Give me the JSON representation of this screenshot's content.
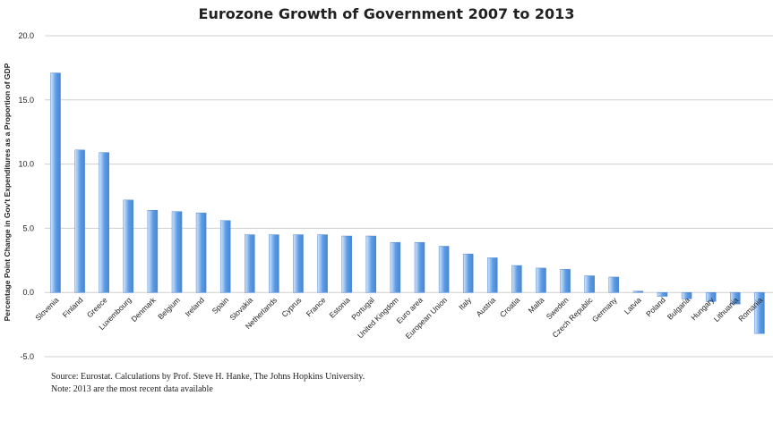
{
  "title": "Eurozone Growth of Government 2007 to 2013",
  "source_text": "Source: Eurostat. Calculations by Prof. Steve H. Hanke, The Johns Hopkins University.",
  "note_text": "Note: 2013 are the most recent data available",
  "colors": {
    "bar_light": "#d7e6fa",
    "bar_dark": "#5b9be6",
    "bar_stroke": "#4a86d0",
    "grid": "#cfcfcf",
    "text": "#222222"
  },
  "chart_data": {
    "type": "bar",
    "title": "Eurozone Growth of Government 2007 to 2013",
    "ylabel": "Percentage Point Change in Gov't Expenditures as a Proportion of GDP",
    "xlabel": "",
    "ylim": [
      -5,
      20
    ],
    "yticks": [
      "20.0",
      "15.0",
      "10.0",
      "5.0",
      "0.0",
      "-5.0"
    ],
    "grid": true,
    "categories": [
      "Slovenia",
      "Finland",
      "Greece",
      "Luxembourg",
      "Denmark",
      "Belgium",
      "Ireland",
      "Spain",
      "Slovakia",
      "Netherlands",
      "Cyprus",
      "France",
      "Estonia",
      "Portugal",
      "United Kingdom",
      "Euro area",
      "European Union",
      "Italy",
      "Austria",
      "Croatia",
      "Malta",
      "Sweden",
      "Czech Republic",
      "Germany",
      "Latvia",
      "Poland",
      "Bulgaria",
      "Hungary",
      "Lithuania",
      "Romania"
    ],
    "values": [
      17.1,
      11.1,
      10.9,
      7.2,
      6.4,
      6.3,
      6.2,
      5.6,
      4.5,
      4.5,
      4.5,
      4.5,
      4.4,
      4.4,
      3.9,
      3.9,
      3.6,
      3.0,
      2.7,
      2.1,
      1.9,
      1.8,
      1.3,
      1.2,
      0.1,
      -0.3,
      -0.5,
      -0.7,
      -0.9,
      -3.2
    ]
  }
}
